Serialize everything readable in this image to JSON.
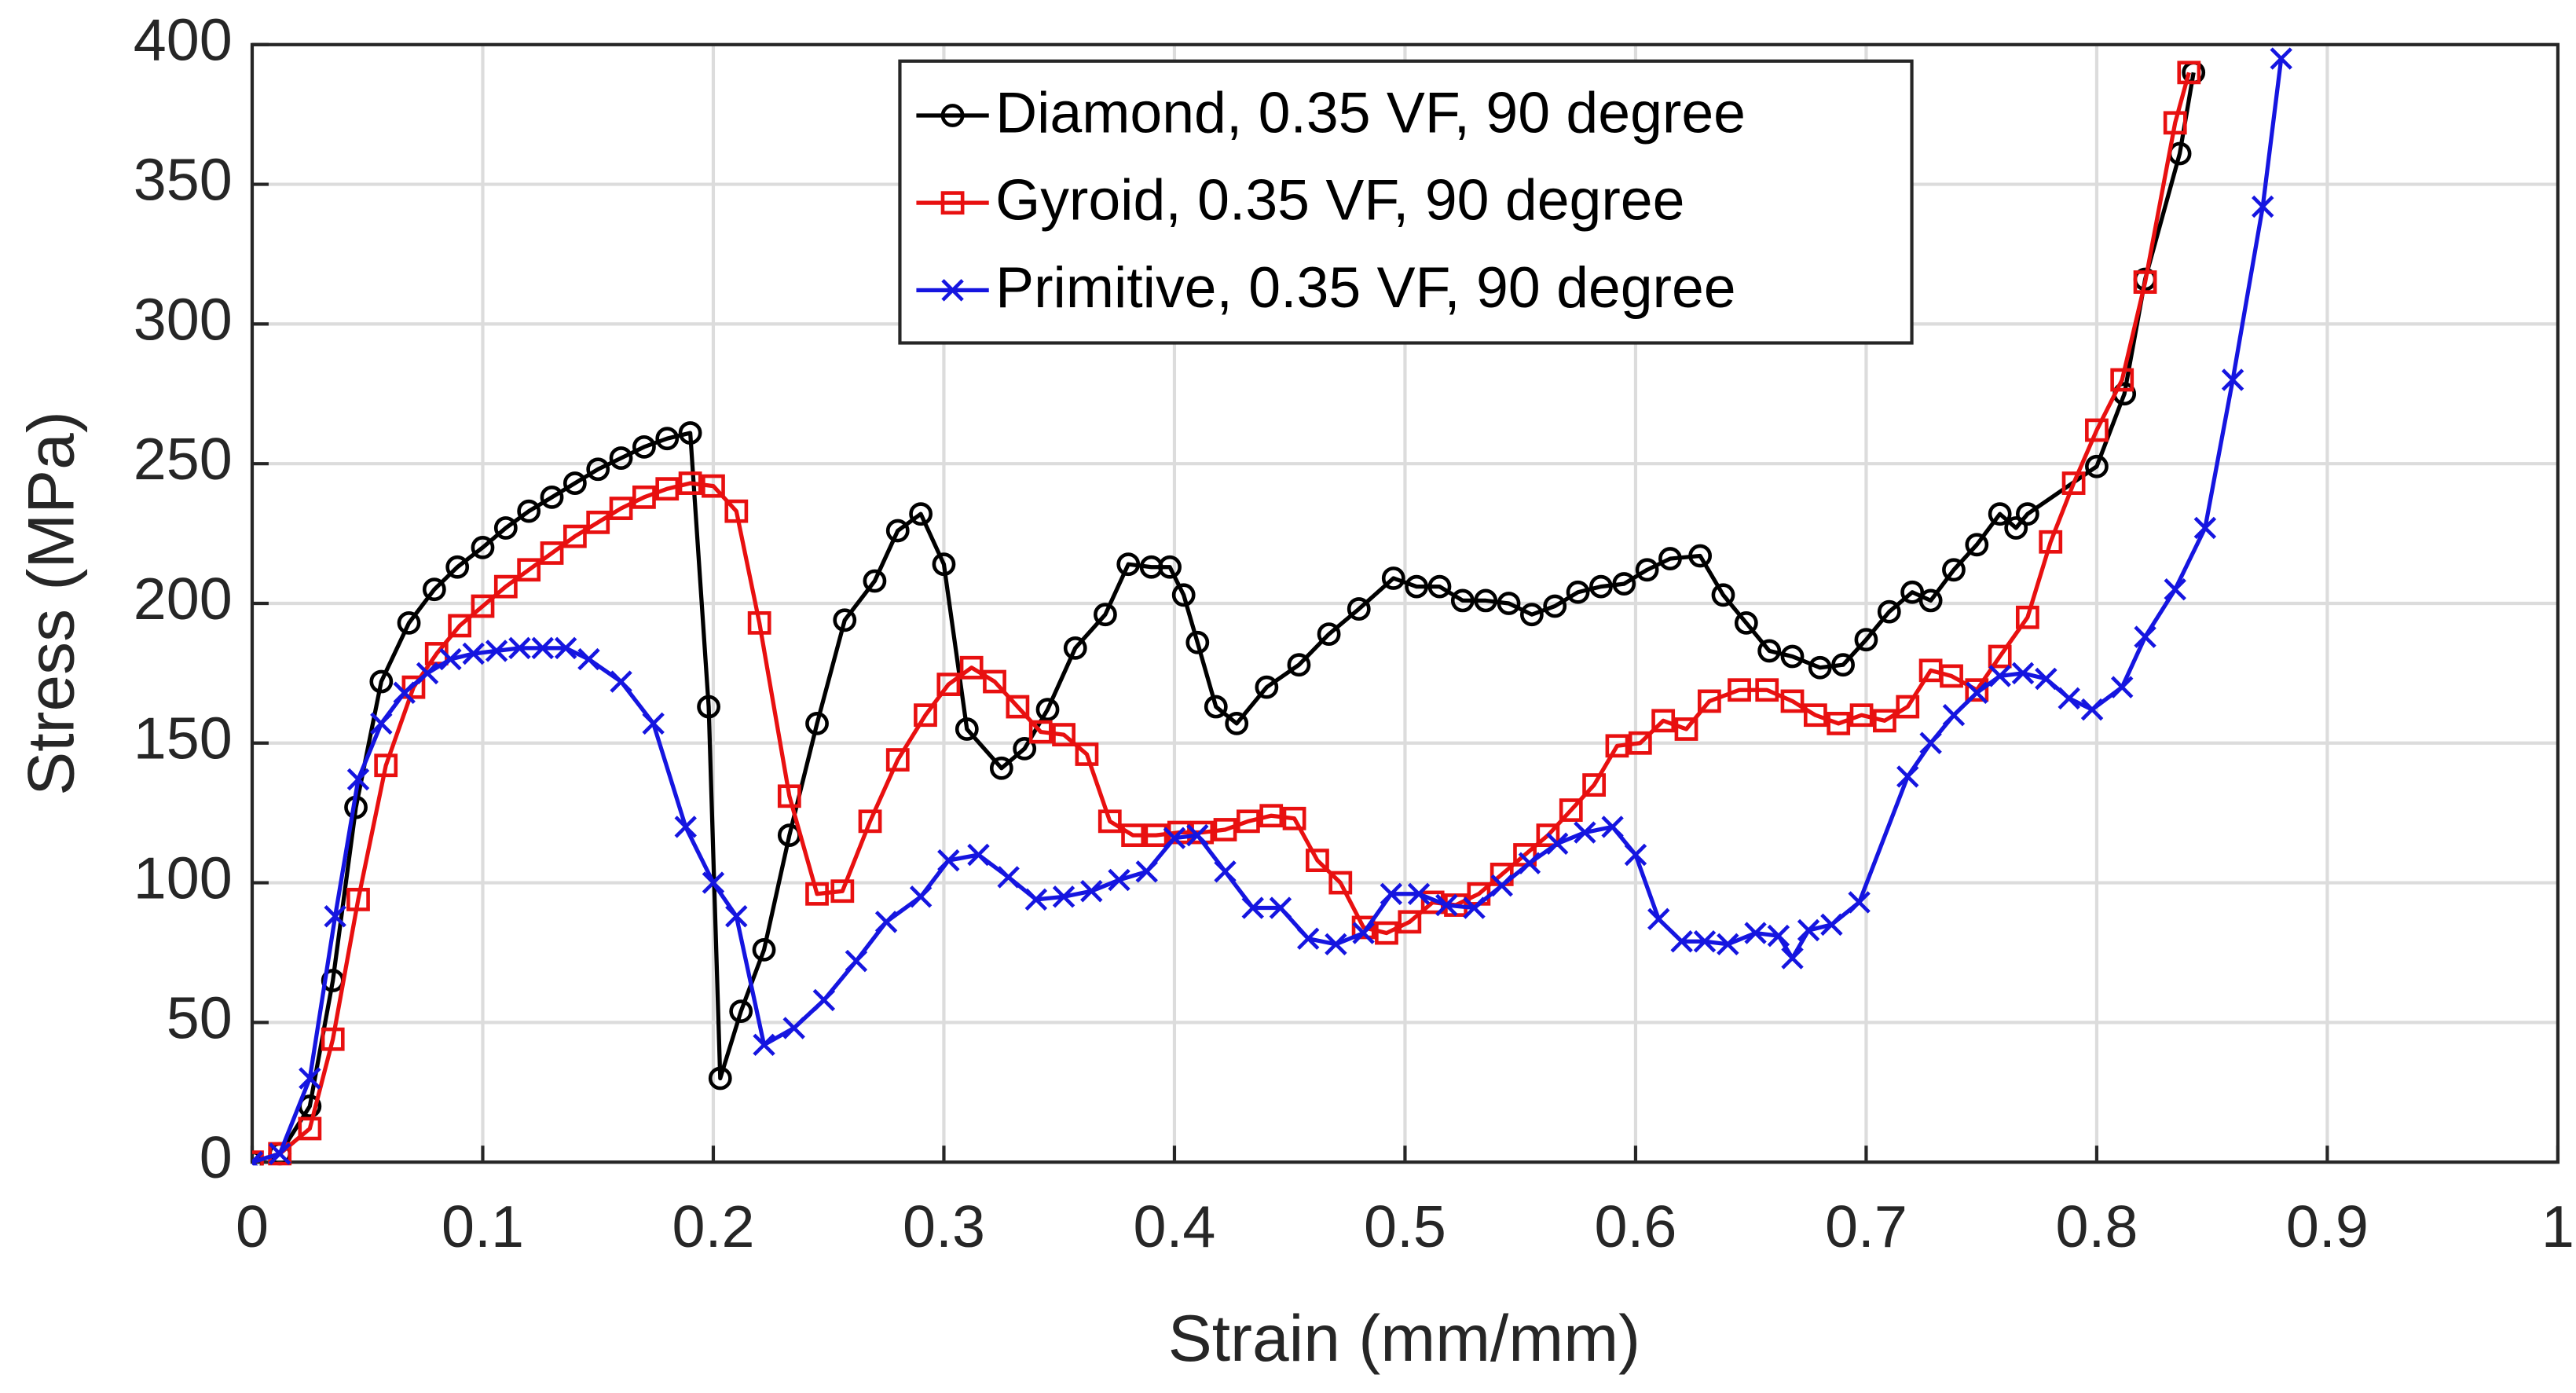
{
  "chart_data": {
    "type": "line",
    "xlabel": "Strain (mm/mm)",
    "ylabel": "Stress (MPa)",
    "xlim": [
      0,
      1
    ],
    "xticks": [
      0,
      0.1,
      0.2,
      0.3,
      0.4,
      0.5,
      0.6,
      0.7,
      0.8,
      0.9,
      1
    ],
    "ylim": [
      0,
      400
    ],
    "yticks": [
      0,
      50,
      100,
      150,
      200,
      250,
      300,
      350,
      400
    ],
    "grid": true,
    "legend": "top",
    "series": [
      {
        "name": "Diamond, 0.35 VF, 90 degree",
        "color": "#000000",
        "marker": "circle",
        "x": [
          0,
          0.012,
          0.025,
          0.035,
          0.045,
          0.056,
          0.068,
          0.079,
          0.089,
          0.1,
          0.11,
          0.12,
          0.13,
          0.14,
          0.15,
          0.16,
          0.17,
          0.18,
          0.19,
          0.198,
          0.203,
          0.212,
          0.222,
          0.233,
          0.245,
          0.257,
          0.27,
          0.28,
          0.29,
          0.3,
          0.31,
          0.325,
          0.335,
          0.345,
          0.357,
          0.37,
          0.38,
          0.39,
          0.398,
          0.404,
          0.41,
          0.418,
          0.427,
          0.44,
          0.454,
          0.467,
          0.48,
          0.495,
          0.505,
          0.515,
          0.525,
          0.535,
          0.545,
          0.555,
          0.565,
          0.575,
          0.585,
          0.595,
          0.605,
          0.615,
          0.628,
          0.638,
          0.648,
          0.658,
          0.668,
          0.68,
          0.69,
          0.7,
          0.71,
          0.72,
          0.728,
          0.738,
          0.748,
          0.758,
          0.765,
          0.77,
          0.8,
          0.812,
          0.821,
          0.836,
          0.842
        ],
        "values": [
          0,
          3,
          20,
          65,
          127,
          172,
          193,
          205,
          213,
          220,
          227,
          233,
          238,
          243,
          248,
          252,
          256,
          259,
          261,
          163,
          30,
          54,
          76,
          117,
          157,
          194,
          208,
          226,
          232,
          214,
          155,
          141,
          148,
          162,
          184,
          196,
          214,
          213,
          213,
          203,
          186,
          163,
          157,
          170,
          178,
          189,
          198,
          209,
          206,
          206,
          201,
          201,
          200,
          196,
          199,
          204,
          206,
          207,
          212,
          216,
          217,
          203,
          193,
          183,
          181,
          177,
          178,
          187,
          197,
          204,
          201,
          212,
          221,
          232,
          227,
          232,
          249,
          275,
          316,
          361,
          390
        ]
      },
      {
        "name": "Gyroid, 0.35 VF, 90 degree",
        "color": "#e81010",
        "marker": "square",
        "x": [
          0,
          0.012,
          0.025,
          0.035,
          0.046,
          0.058,
          0.07,
          0.08,
          0.09,
          0.1,
          0.11,
          0.12,
          0.13,
          0.14,
          0.15,
          0.16,
          0.17,
          0.18,
          0.19,
          0.2,
          0.21,
          0.22,
          0.233,
          0.245,
          0.256,
          0.268,
          0.28,
          0.292,
          0.302,
          0.312,
          0.322,
          0.332,
          0.342,
          0.352,
          0.362,
          0.372,
          0.382,
          0.392,
          0.402,
          0.412,
          0.422,
          0.432,
          0.442,
          0.452,
          0.462,
          0.472,
          0.482,
          0.492,
          0.502,
          0.512,
          0.522,
          0.532,
          0.542,
          0.552,
          0.562,
          0.572,
          0.582,
          0.592,
          0.602,
          0.612,
          0.622,
          0.632,
          0.645,
          0.657,
          0.668,
          0.678,
          0.688,
          0.698,
          0.708,
          0.718,
          0.728,
          0.737,
          0.748,
          0.758,
          0.77,
          0.78,
          0.79,
          0.8,
          0.811,
          0.821,
          0.834,
          0.84
        ],
        "values": [
          0,
          3,
          12,
          44,
          94,
          142,
          170,
          182,
          192,
          199,
          206,
          212,
          218,
          224,
          229,
          234,
          238,
          241,
          243,
          242,
          233,
          193,
          131,
          96,
          97,
          122,
          144,
          160,
          171,
          177,
          172,
          163,
          154,
          153,
          146,
          122,
          117,
          117,
          118,
          118,
          119,
          122,
          124,
          123,
          108,
          100,
          84,
          82,
          86,
          93,
          92,
          96,
          103,
          110,
          117,
          126,
          135,
          149,
          150,
          158,
          155,
          165,
          169,
          169,
          165,
          160,
          157,
          160,
          158,
          163,
          176,
          174,
          169,
          181,
          195,
          222,
          243,
          262,
          280,
          315,
          372,
          390
        ]
      },
      {
        "name": "Primitive, 0.35 VF, 90 degree",
        "color": "#1515e0",
        "marker": "x",
        "x": [
          0,
          0.012,
          0.025,
          0.036,
          0.046,
          0.056,
          0.066,
          0.076,
          0.086,
          0.096,
          0.106,
          0.116,
          0.126,
          0.136,
          0.146,
          0.16,
          0.174,
          0.188,
          0.2,
          0.21,
          0.222,
          0.235,
          0.248,
          0.262,
          0.275,
          0.29,
          0.302,
          0.315,
          0.328,
          0.34,
          0.352,
          0.364,
          0.376,
          0.388,
          0.4,
          0.41,
          0.422,
          0.434,
          0.446,
          0.458,
          0.47,
          0.482,
          0.494,
          0.506,
          0.518,
          0.53,
          0.542,
          0.554,
          0.566,
          0.578,
          0.59,
          0.6,
          0.61,
          0.62,
          0.63,
          0.64,
          0.652,
          0.662,
          0.668,
          0.675,
          0.685,
          0.697,
          0.718,
          0.728,
          0.738,
          0.748,
          0.758,
          0.768,
          0.778,
          0.788,
          0.798,
          0.811,
          0.821,
          0.834,
          0.847,
          0.859,
          0.872,
          0.88
        ],
        "values": [
          0,
          3,
          30,
          88,
          137,
          157,
          168,
          175,
          180,
          182,
          183,
          184,
          184,
          184,
          180,
          172,
          157,
          120,
          100,
          88,
          42,
          48,
          58,
          72,
          86,
          95,
          108,
          110,
          102,
          94,
          95,
          97,
          101,
          104,
          116,
          117,
          104,
          91,
          91,
          80,
          78,
          82,
          96,
          96,
          92,
          91,
          99,
          107,
          114,
          118,
          120,
          110,
          87,
          79,
          79,
          78,
          82,
          81,
          73,
          83,
          85,
          93,
          138,
          150,
          160,
          168,
          174,
          175,
          173,
          166,
          162,
          170,
          188,
          205,
          227,
          280,
          342,
          395
        ]
      }
    ]
  }
}
